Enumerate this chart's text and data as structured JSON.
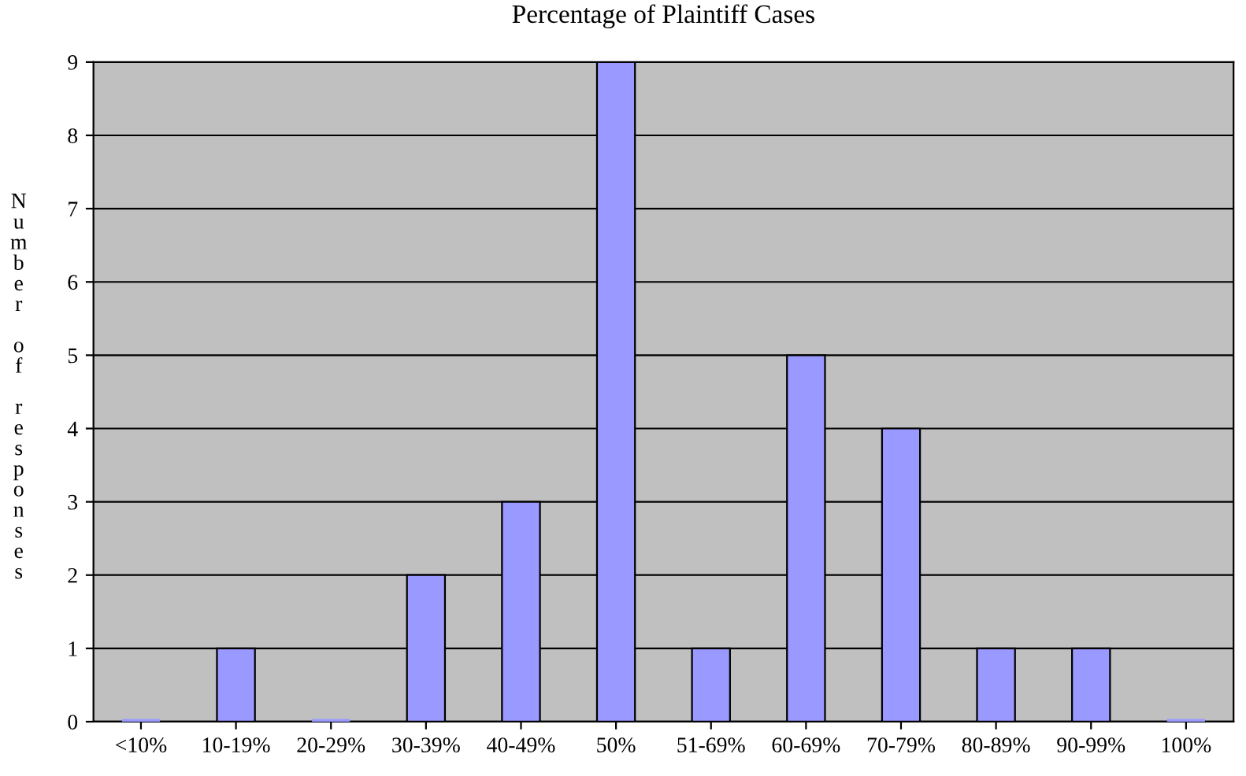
{
  "chart_data": {
    "type": "bar",
    "title": "Percentage of Plaintiff Cases",
    "ylabel": "Number of responses",
    "categories": [
      "<10%",
      "10-19%",
      "20-29%",
      "30-39%",
      "40-49%",
      "50%",
      "51-69%",
      "60-69%",
      "70-79%",
      "80-89%",
      "90-99%",
      "100%"
    ],
    "values": [
      0,
      1,
      0,
      2,
      3,
      9,
      1,
      5,
      4,
      1,
      1,
      0
    ],
    "color": "#9999ff",
    "ylim": [
      0,
      9
    ],
    "yticks": [
      0,
      1,
      2,
      3,
      4,
      5,
      6,
      7,
      8,
      9
    ],
    "grid": "y",
    "legend": false
  }
}
